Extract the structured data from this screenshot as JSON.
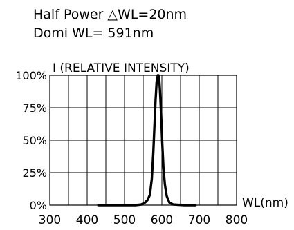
{
  "annotations": {
    "half_power": "Half Power  △WL=20nm",
    "dominant_wl": "Domi WL= 591nm"
  },
  "chart_data": {
    "type": "line",
    "title": "",
    "ylabel": "I (RELATIVE INTENSITY)",
    "xlabel": "WL(nm)",
    "xlim": [
      300,
      800
    ],
    "ylim": [
      0,
      100
    ],
    "x_ticks": [
      300,
      400,
      500,
      600,
      700,
      800
    ],
    "x_tick_labels": [
      "300",
      "400",
      "500",
      "600",
      "700",
      "800"
    ],
    "y_ticks": [
      0,
      25,
      50,
      75,
      100
    ],
    "y_tick_labels": [
      "0%",
      "25%",
      "50%",
      "75%",
      "100%"
    ],
    "vertical_grid_step": 50,
    "grid": true,
    "legend": "none",
    "series": [
      {
        "x": [
          430,
          500,
          530,
          545,
          555,
          562,
          568,
          573,
          577,
          580,
          583,
          586,
          589,
          591,
          593,
          595,
          598,
          601,
          604,
          608,
          613,
          620,
          630,
          660,
          690
        ],
        "y": [
          0,
          0,
          0,
          0.5,
          2,
          4,
          8,
          20,
          40,
          60,
          80,
          95,
          100,
          100,
          97,
          88,
          70,
          48,
          30,
          16,
          7,
          2,
          0.5,
          0,
          0
        ]
      }
    ]
  }
}
